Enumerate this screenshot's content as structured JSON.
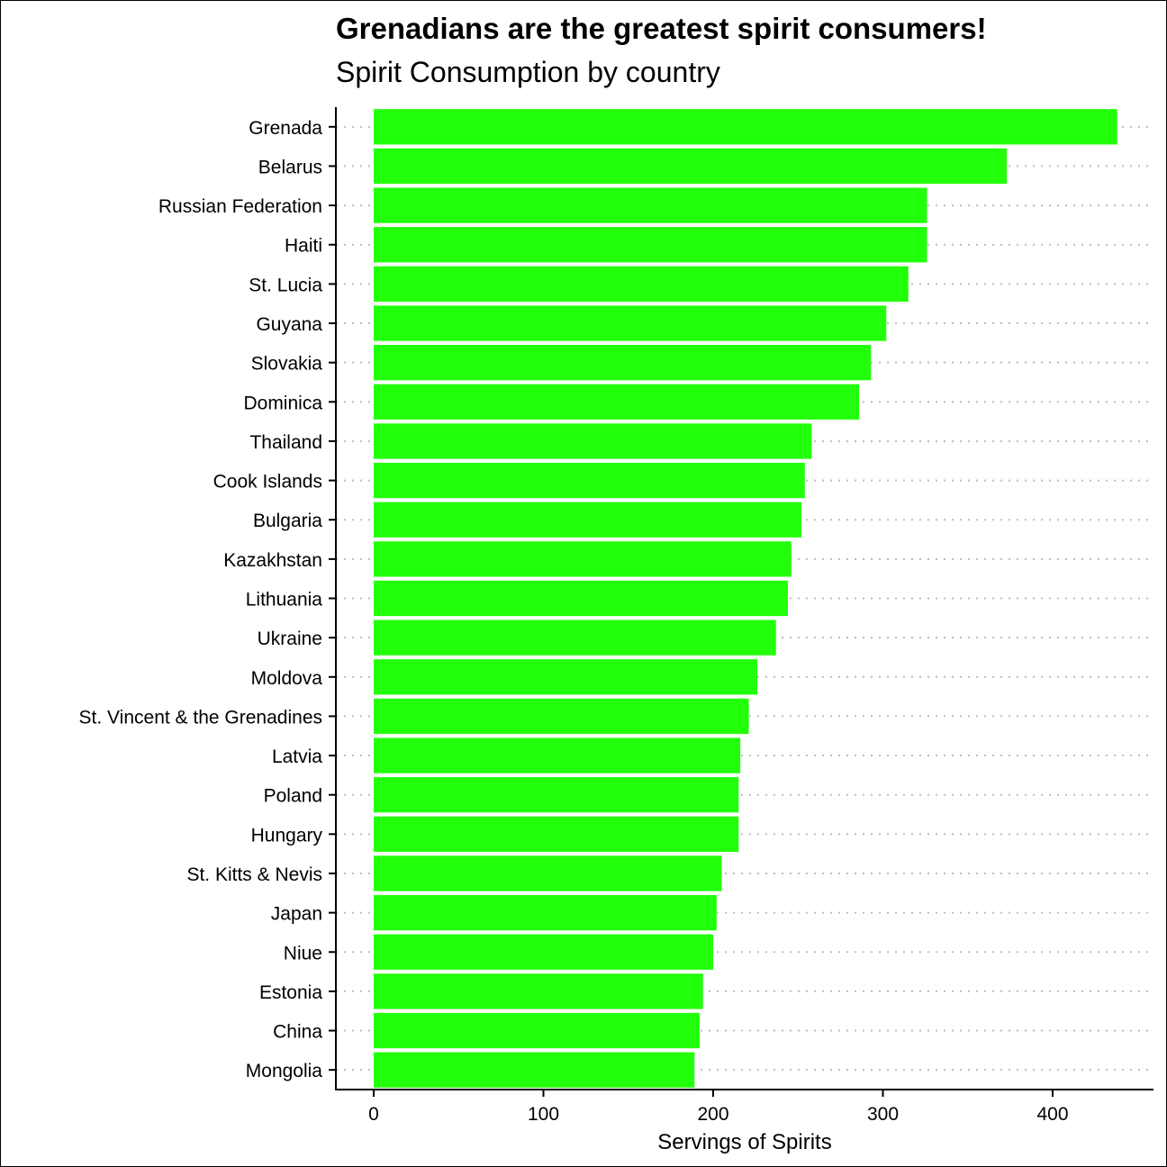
{
  "chart_data": {
    "type": "bar",
    "orientation": "horizontal",
    "title": "Grenadians are the greatest spirit consumers!",
    "subtitle": "Spirit Consumption by country",
    "xlabel": "Servings of Spirits",
    "ylabel": "",
    "xlim": [
      -22,
      460
    ],
    "xticks": [
      0,
      100,
      200,
      300,
      400
    ],
    "grid": "dotted horizontal guides",
    "bar_color": "#22ff0a",
    "categories": [
      "Grenada",
      "Belarus",
      "Russian Federation",
      "Haiti",
      "St. Lucia",
      "Guyana",
      "Slovakia",
      "Dominica",
      "Thailand",
      "Cook Islands",
      "Bulgaria",
      "Kazakhstan",
      "Lithuania",
      "Ukraine",
      "Moldova",
      "St. Vincent & the Grenadines",
      "Latvia",
      "Poland",
      "Hungary",
      "St. Kitts & Nevis",
      "Japan",
      "Niue",
      "Estonia",
      "China",
      "Mongolia"
    ],
    "values": [
      438,
      373,
      326,
      326,
      315,
      302,
      293,
      286,
      258,
      254,
      252,
      246,
      244,
      237,
      226,
      221,
      216,
      215,
      215,
      205,
      202,
      200,
      194,
      192,
      189
    ]
  }
}
